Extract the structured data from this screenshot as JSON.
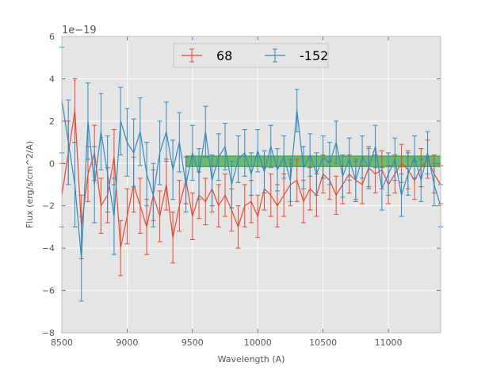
{
  "chart_data": {
    "type": "line",
    "title": "",
    "xlabel": "Wavelength (A)",
    "ylabel": "Flux (erg/s/cm^2/A)",
    "y_offset_label": "1e−19",
    "xlim": [
      8500,
      11400
    ],
    "ylim": [
      -8,
      6
    ],
    "x_ticks": [
      8500,
      9000,
      9500,
      10000,
      10500,
      11000
    ],
    "x_tick_labels": [
      "8500",
      "9000",
      "9500",
      "10000",
      "10500",
      "11000"
    ],
    "y_ticks": [
      -8,
      -6,
      -4,
      -2,
      0,
      2,
      4,
      6
    ],
    "y_tick_labels": [
      "−8",
      "−6",
      "−4",
      "−2",
      "0",
      "2",
      "4",
      "6"
    ],
    "grid": true,
    "legend_position": "top-center",
    "band": {
      "x_start": 9450,
      "x_end": 11400,
      "y_low": -0.15,
      "y_high": 0.35,
      "color": "#2ca02c"
    },
    "series": [
      {
        "name": "68",
        "color": "#e24a33",
        "x": [
          8500,
          8550,
          8600,
          8650,
          8700,
          8750,
          8800,
          8850,
          8900,
          8950,
          9000,
          9050,
          9100,
          9150,
          9200,
          9250,
          9300,
          9350,
          9400,
          9450,
          9500,
          9550,
          9600,
          9650,
          9700,
          9750,
          9800,
          9850,
          9900,
          9950,
          10000,
          10050,
          10100,
          10150,
          10200,
          10250,
          10300,
          10350,
          10400,
          10450,
          10500,
          10550,
          10600,
          10650,
          10700,
          10750,
          10800,
          10850,
          10900,
          10950,
          11000,
          11050,
          11100,
          11150,
          11200,
          11250,
          11300,
          11350,
          11400
        ],
        "y": [
          -1.5,
          0.5,
          2.5,
          -3.0,
          -0.5,
          0.5,
          -2.0,
          -1.5,
          0.3,
          -4.0,
          -2.5,
          -1.0,
          -2.0,
          -3.0,
          -1.5,
          -2.5,
          -1.0,
          -3.5,
          -2.0,
          -0.8,
          -2.5,
          -1.5,
          -1.8,
          -1.2,
          -2.0,
          -1.5,
          -2.2,
          -3.0,
          -2.0,
          -1.8,
          -2.5,
          -1.2,
          -1.5,
          -2.0,
          -1.5,
          -1.0,
          -0.8,
          -1.8,
          -1.2,
          -1.5,
          -0.5,
          -0.8,
          -1.5,
          -1.0,
          -0.5,
          -0.8,
          -1.0,
          -0.2,
          -0.5,
          -0.3,
          -1.0,
          -0.5,
          0.0,
          -0.3,
          -0.8,
          -0.2,
          0.2,
          -0.5,
          -1.0
        ],
        "err": [
          1.5,
          1.5,
          1.5,
          1.5,
          1.3,
          1.3,
          1.3,
          1.3,
          1.3,
          1.3,
          1.3,
          1.3,
          1.3,
          1.3,
          1.2,
          1.2,
          1.2,
          1.2,
          1.2,
          1.1,
          1.1,
          1.1,
          1.1,
          1.1,
          1.0,
          1.0,
          1.0,
          1.0,
          1.0,
          1.0,
          1.0,
          1.0,
          1.0,
          1.0,
          1.0,
          1.0,
          1.0,
          1.0,
          1.0,
          1.0,
          0.9,
          0.9,
          0.9,
          0.9,
          0.9,
          0.9,
          0.9,
          0.9,
          0.9,
          0.9,
          0.9,
          0.9,
          0.9,
          0.9,
          0.9,
          0.9,
          0.9,
          0.9,
          0.9
        ]
      },
      {
        "name": "-152",
        "color": "#348abd",
        "x": [
          8500,
          8550,
          8600,
          8650,
          8700,
          8750,
          8800,
          8850,
          8900,
          8950,
          9000,
          9050,
          9100,
          9150,
          9200,
          9250,
          9300,
          9350,
          9400,
          9450,
          9500,
          9550,
          9600,
          9650,
          9700,
          9750,
          9800,
          9850,
          9900,
          9950,
          10000,
          10050,
          10100,
          10150,
          10200,
          10250,
          10300,
          10350,
          10400,
          10450,
          10500,
          10550,
          10600,
          10650,
          10700,
          10750,
          10800,
          10850,
          10900,
          10950,
          11000,
          11050,
          11100,
          11150,
          11200,
          11250,
          11300,
          11350,
          11400
        ],
        "y": [
          3.0,
          1.0,
          -1.0,
          -4.5,
          2.0,
          -1.0,
          1.5,
          -0.5,
          -2.5,
          2.0,
          1.0,
          0.5,
          1.5,
          -0.5,
          -1.5,
          0.5,
          1.5,
          -0.3,
          1.0,
          -1.0,
          0.5,
          -0.5,
          1.5,
          -0.8,
          0.3,
          0.8,
          -1.0,
          0.2,
          0.5,
          -0.5,
          0.6,
          -0.4,
          0.8,
          -0.3,
          0.3,
          -0.8,
          2.5,
          -0.2,
          0.4,
          -0.5,
          0.3,
          0.0,
          1.0,
          -0.6,
          0.2,
          -0.8,
          0.3,
          -0.2,
          0.8,
          -1.2,
          -0.5,
          0.2,
          -1.5,
          -0.5,
          0.3,
          -0.8,
          0.5,
          -1.0,
          -2.0
        ],
        "err": [
          2.5,
          2.0,
          2.0,
          2.0,
          1.8,
          1.8,
          1.8,
          1.8,
          1.8,
          1.6,
          1.6,
          1.6,
          1.6,
          1.5,
          1.5,
          1.5,
          1.4,
          1.4,
          1.4,
          1.3,
          1.3,
          1.2,
          1.2,
          1.2,
          1.1,
          1.1,
          1.1,
          1.1,
          1.1,
          1.0,
          1.0,
          1.0,
          1.0,
          1.0,
          1.0,
          1.0,
          1.0,
          1.0,
          1.0,
          1.0,
          1.0,
          1.0,
          1.0,
          1.0,
          1.0,
          1.0,
          1.0,
          1.0,
          1.0,
          1.0,
          1.0,
          1.0,
          1.0,
          1.0,
          1.0,
          1.0,
          1.0,
          1.0,
          1.0
        ]
      }
    ]
  }
}
